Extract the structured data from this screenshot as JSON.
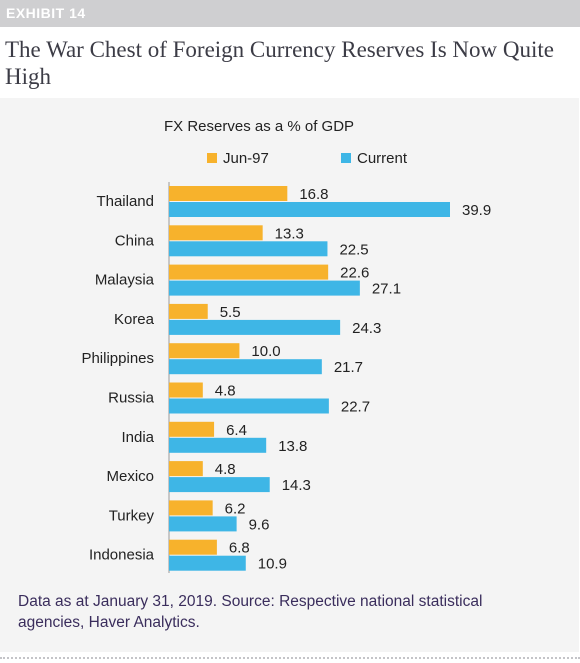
{
  "exhibit_label": "EXHIBIT 14",
  "title": "The War Chest of Foreign Currency Reserves Is Now Quite High",
  "colors": {
    "jun97": "#f7b22c",
    "current": "#3eb6e6",
    "header": "#cfcfd1",
    "panel": "#f4f4f4"
  },
  "chart_data": {
    "type": "bar",
    "orientation": "horizontal",
    "title": "FX Reserves as a % of GDP",
    "categories": [
      "Thailand",
      "China",
      "Malaysia",
      "Korea",
      "Philippines",
      "Russia",
      "India",
      "Mexico",
      "Turkey",
      "Indonesia"
    ],
    "series": [
      {
        "name": "Jun-97",
        "values": [
          16.8,
          13.3,
          22.6,
          5.5,
          10.0,
          4.8,
          6.4,
          4.8,
          6.2,
          6.8
        ]
      },
      {
        "name": "Current",
        "values": [
          39.9,
          22.5,
          27.1,
          24.3,
          21.7,
          22.7,
          13.8,
          14.3,
          9.6,
          10.9
        ]
      }
    ],
    "legend_position": "top",
    "grid": false
  },
  "footnote": "Data as at January 31, 2019. Source: Respective national statistical agencies, Haver Analytics."
}
